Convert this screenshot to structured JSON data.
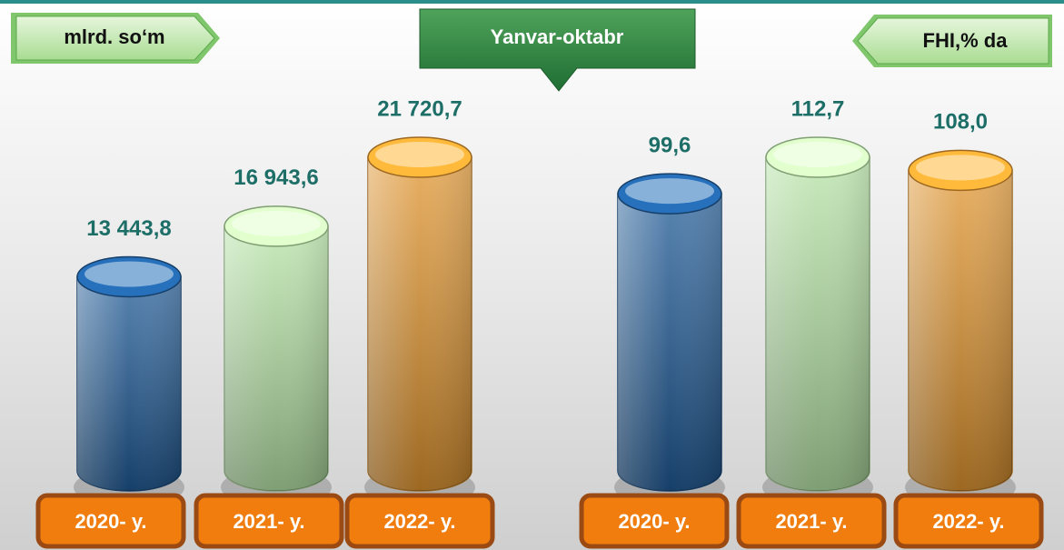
{
  "title": "Yanvar-oktabr",
  "chart_data": [
    {
      "type": "cylinder",
      "unit_label": "mlrd. so‘m",
      "categories": [
        "2020- y.",
        "2021- y.",
        "2022- y."
      ],
      "values": [
        13443.8,
        16943.6,
        21720.7
      ],
      "value_labels": [
        "13 443,8",
        "16 943,6",
        "21 720,7"
      ],
      "colors": [
        "#1f5a96",
        "#b5e3a5",
        "#e0952f"
      ]
    },
    {
      "type": "cylinder",
      "unit_label": "FHI,% da",
      "categories": [
        "2020- y.",
        "2021- y.",
        "2022- y."
      ],
      "values": [
        99.6,
        112.7,
        108.0
      ],
      "value_labels": [
        "99,6",
        "112,7",
        "108,0"
      ],
      "colors": [
        "#1f5a96",
        "#b5e3a5",
        "#e0952f"
      ]
    }
  ]
}
